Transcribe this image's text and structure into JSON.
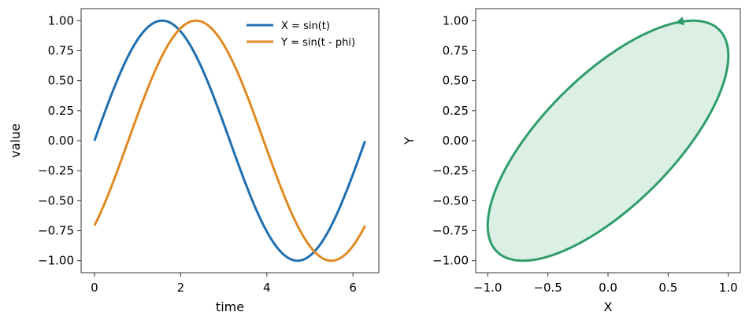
{
  "chart_data": [
    {
      "type": "line",
      "xlabel": "time",
      "ylabel": "value",
      "xlim": [
        -0.31,
        6.6
      ],
      "ylim": [
        -1.1,
        1.1
      ],
      "xticks": [
        0,
        2,
        4,
        6
      ],
      "yticks": [
        -1.0,
        -0.75,
        -0.5,
        -0.25,
        0.0,
        0.25,
        0.5,
        0.75,
        1.0
      ],
      "xtick_labels": [
        "0",
        "2",
        "4",
        "6"
      ],
      "ytick_labels": [
        "−1.00",
        "−0.75",
        "−0.50",
        "−0.25",
        "0.00",
        "0.25",
        "0.50",
        "0.75",
        "1.00"
      ],
      "legend_position": "top-right",
      "series": [
        {
          "name": "X = sin(t)",
          "color": "#1f6fb0",
          "x": [
            0,
            0.39,
            0.79,
            1.18,
            1.57,
            1.96,
            2.36,
            2.75,
            3.14,
            3.53,
            3.93,
            4.32,
            4.71,
            5.11,
            5.5,
            5.89,
            6.28
          ],
          "y": [
            0.0,
            0.38,
            0.71,
            0.92,
            1.0,
            0.92,
            0.71,
            0.38,
            0.0,
            -0.38,
            -0.71,
            -0.92,
            -1.0,
            -0.92,
            -0.71,
            -0.38,
            0.0
          ]
        },
        {
          "name": "Y = sin(t - phi)",
          "color": "#e08a23",
          "x": [
            0,
            0.39,
            0.79,
            1.18,
            1.57,
            1.96,
            2.36,
            2.75,
            3.14,
            3.53,
            3.93,
            4.32,
            4.71,
            5.11,
            5.5,
            5.89,
            6.28
          ],
          "y": [
            -0.71,
            -0.38,
            0.0,
            0.38,
            0.71,
            0.92,
            1.0,
            0.92,
            0.71,
            0.38,
            0.0,
            -0.38,
            -0.71,
            -0.92,
            -1.0,
            -0.92,
            -0.71
          ]
        }
      ]
    },
    {
      "type": "area",
      "xlabel": "X",
      "ylabel": "Y",
      "xlim": [
        -1.1,
        1.1
      ],
      "ylim": [
        -1.1,
        1.1
      ],
      "xticks": [
        -1.0,
        -0.5,
        0.0,
        0.5,
        1.0
      ],
      "yticks": [
        -1.0,
        -0.75,
        -0.5,
        -0.25,
        0.0,
        0.25,
        0.5,
        0.75,
        1.0
      ],
      "xtick_labels": [
        "−1.0",
        "−0.5",
        "0.0",
        "0.5",
        "1.0"
      ],
      "ytick_labels": [
        "−1.00",
        "−0.75",
        "−0.50",
        "−0.25",
        "0.00",
        "0.25",
        "0.50",
        "0.75",
        "1.00"
      ],
      "line_color": "#2e9d6a",
      "fill_color": "#dcefe4",
      "arrow_at_t": 2.55,
      "phi": 0.785
    }
  ]
}
